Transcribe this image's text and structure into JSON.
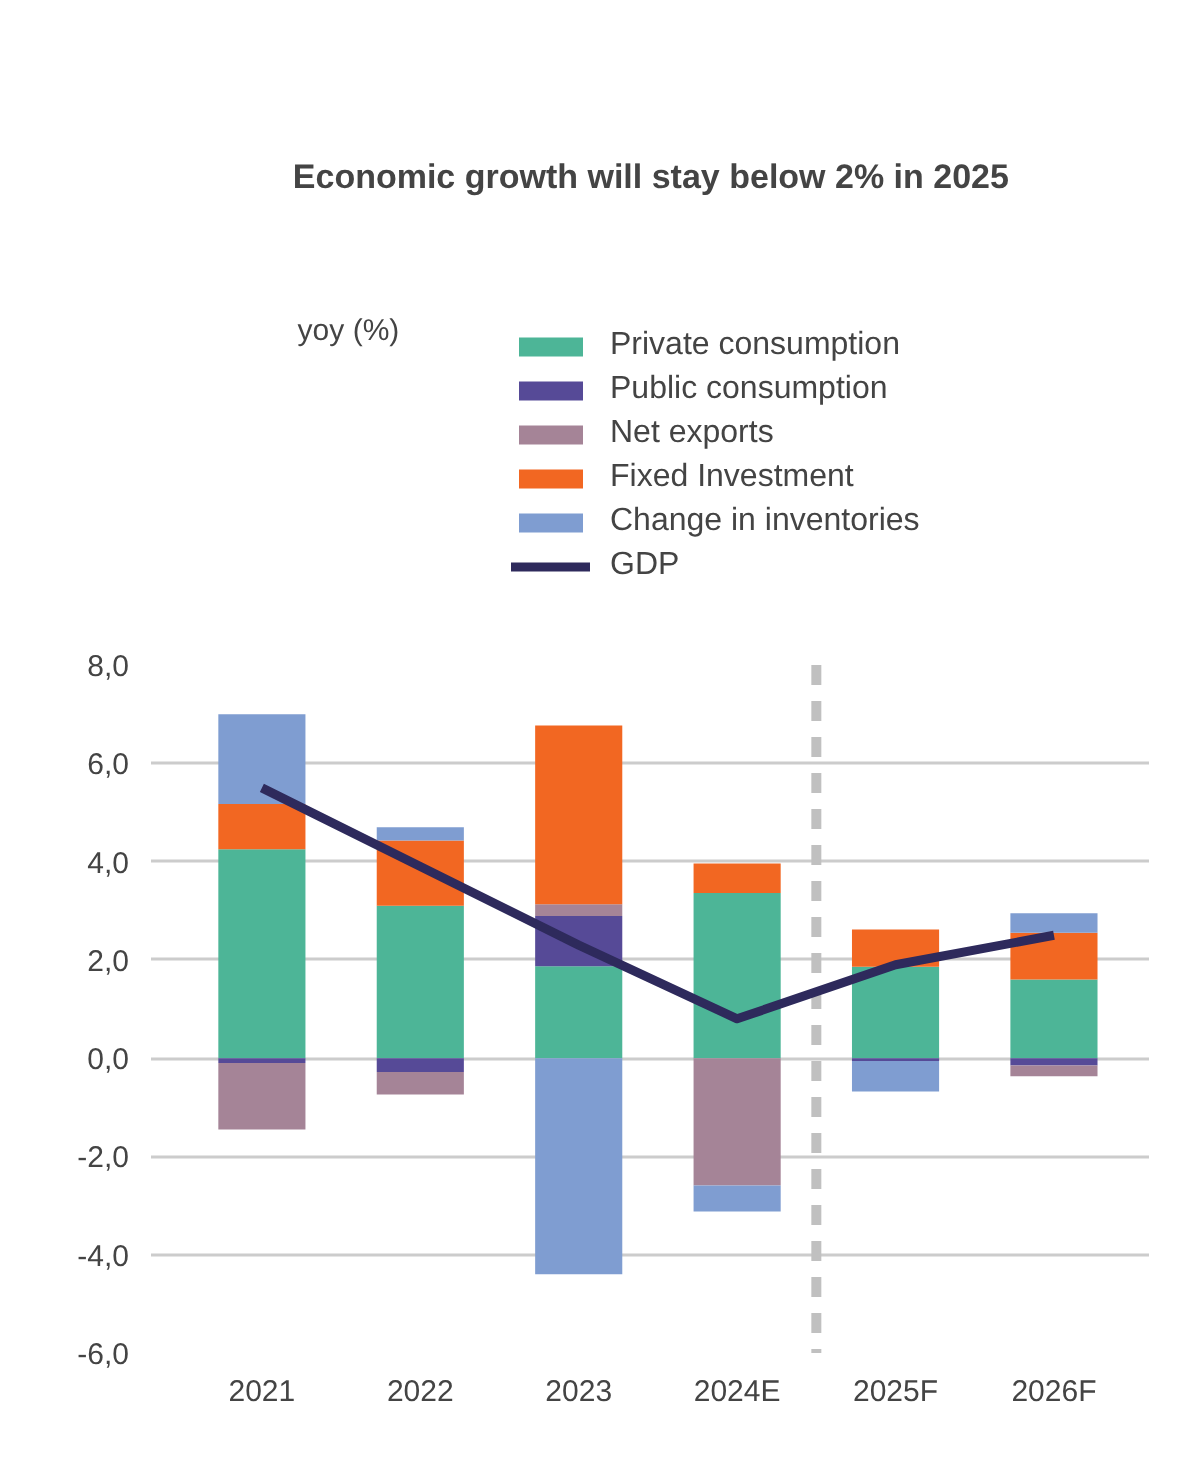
{
  "chart_data": {
    "type": "bar",
    "title": "Economic growth will stay below 2% in 2025",
    "annotations": [
      "yoy (%)"
    ],
    "x": [
      2021,
      2022,
      2023,
      2024,
      2025,
      2026
    ],
    "xlim": [
      2020.3,
      2026.6
    ],
    "xticks": [
      2021,
      2022,
      2023,
      {
        "value": 2024,
        "label": "2024E"
      },
      {
        "value": 2025,
        "label": "2025F"
      },
      {
        "value": 2026,
        "label": "2026F"
      }
    ],
    "stacked": true,
    "series": [
      {
        "name": "Private consumption",
        "color": "#4db597",
        "values": [
          4.25,
          3.1,
          1.87,
          3.36,
          1.86,
          1.6
        ]
      },
      {
        "name": "Public consumption",
        "color": "#564a97",
        "values": [
          -0.1,
          -0.28,
          1.02,
          0,
          -0.06,
          -0.15
        ]
      },
      {
        "name": "Net exports",
        "color": "#a58497",
        "values": [
          -1.35,
          -0.46,
          0.24,
          -2.59,
          0,
          -0.22
        ]
      },
      {
        "name": "Fixed Investment",
        "color": "#f26722",
        "values": [
          0.92,
          1.33,
          3.64,
          0.6,
          0.76,
          0.95
        ]
      },
      {
        "name": "Change in inventories",
        "color": "#7f9dd1",
        "values": [
          1.83,
          0.27,
          -4.4,
          -0.53,
          -0.62,
          0.4
        ]
      },
      {
        "name": "GDP",
        "type": "line",
        "color": "#2e2a5c",
        "values": [
          5.5,
          3.9,
          2.3,
          0.8,
          1.9,
          2.5
        ]
      }
    ],
    "ylim": [
      -6,
      8
    ],
    "yticks": [
      {
        "value": -6,
        "label": "-6,0"
      },
      {
        "value": -4,
        "label": "-4,0"
      },
      {
        "value": -2,
        "label": "-2,0"
      },
      {
        "value": 0,
        "label": "0,0"
      },
      {
        "value": 2,
        "label": "2,0"
      },
      {
        "value": 4,
        "label": "4,0"
      },
      {
        "value": 6,
        "label": "6,0"
      },
      {
        "value": 8,
        "label": "8,0"
      }
    ],
    "grid": "y",
    "legend": "top",
    "ref_lines": [
      {
        "axis": "x",
        "value": 2024.5,
        "color": "#c0c0c0",
        "line_style": "dashed"
      }
    ]
  }
}
